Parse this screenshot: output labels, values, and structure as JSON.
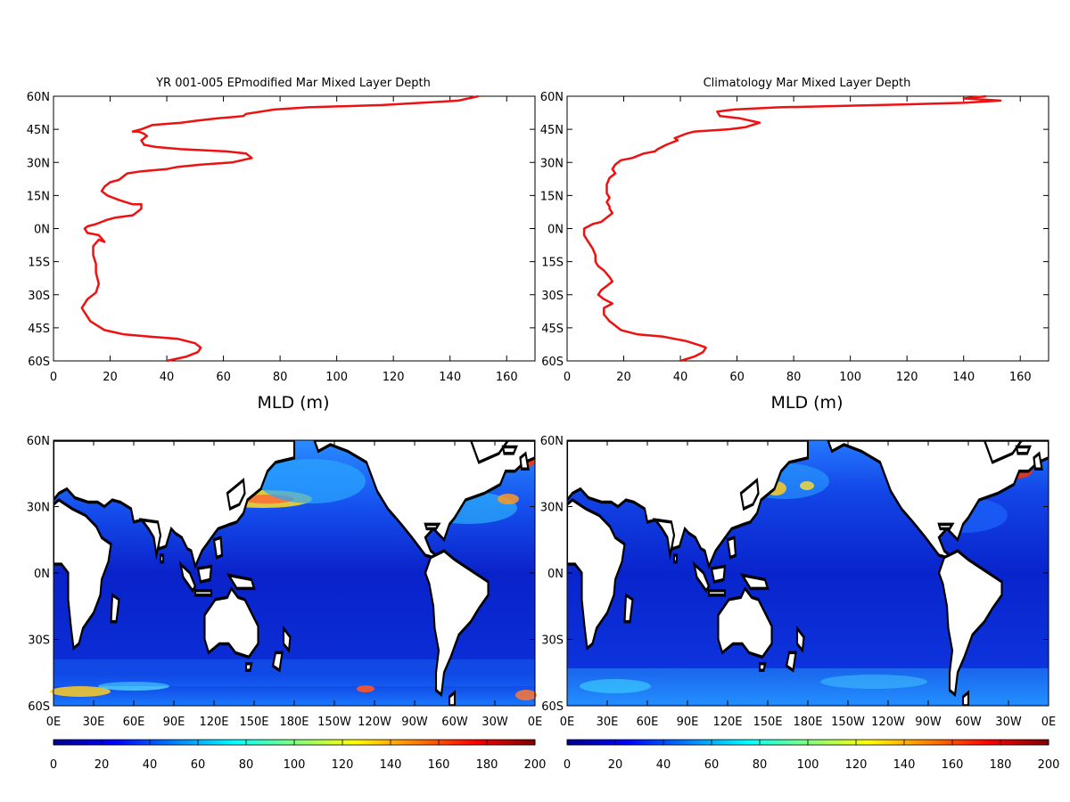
{
  "colors": {
    "profile_line": "#ee1111",
    "frame": "#000000"
  },
  "chart_data": [
    {
      "type": "line",
      "title": "YR 001-005 EPmodified Mar Mixed Layer Depth",
      "xlabel": "MLD (m)",
      "ylabel": "",
      "xlim": [
        0,
        170
      ],
      "ylim": [
        -60,
        60
      ],
      "x_ticks": [
        "0",
        "20",
        "40",
        "60",
        "80",
        "100",
        "120",
        "140",
        "160"
      ],
      "y_ticks": [
        "60S",
        "45S",
        "30S",
        "15S",
        "0N",
        "15N",
        "30N",
        "45N",
        "60N"
      ],
      "grid": false,
      "series": [
        {
          "points": [
            [
              40,
              -60
            ],
            [
              47,
              -58
            ],
            [
              51,
              -56
            ],
            [
              52,
              -54
            ],
            [
              50,
              -52
            ],
            [
              44,
              -50
            ],
            [
              34,
              -49
            ],
            [
              25,
              -48
            ],
            [
              18,
              -46
            ],
            [
              13,
              -42
            ],
            [
              11,
              -38
            ],
            [
              10,
              -36
            ],
            [
              12,
              -32
            ],
            [
              15,
              -29
            ],
            [
              16,
              -25
            ],
            [
              15,
              -20
            ],
            [
              15,
              -16
            ],
            [
              14,
              -12
            ],
            [
              14,
              -8
            ],
            [
              16,
              -5
            ],
            [
              18,
              -6
            ],
            [
              16,
              -3
            ],
            [
              12,
              -2
            ],
            [
              11,
              0
            ],
            [
              12,
              1
            ],
            [
              15,
              2
            ],
            [
              19,
              4
            ],
            [
              22,
              5
            ],
            [
              28,
              6
            ],
            [
              29,
              7
            ],
            [
              31,
              9
            ],
            [
              31,
              11
            ],
            [
              28,
              11
            ],
            [
              23,
              13
            ],
            [
              19,
              15
            ],
            [
              17,
              17
            ],
            [
              18,
              19
            ],
            [
              20,
              21
            ],
            [
              23,
              22
            ],
            [
              24,
              23
            ],
            [
              26,
              25
            ],
            [
              31,
              26
            ],
            [
              40,
              27
            ],
            [
              44,
              28
            ],
            [
              52,
              29
            ],
            [
              63,
              30
            ],
            [
              70,
              32
            ],
            [
              68,
              34
            ],
            [
              61,
              35
            ],
            [
              45,
              36
            ],
            [
              36,
              37
            ],
            [
              32,
              38
            ],
            [
              31,
              40
            ],
            [
              33,
              42
            ],
            [
              32,
              43
            ],
            [
              30,
              44
            ],
            [
              28,
              44
            ],
            [
              31,
              45
            ],
            [
              35,
              47
            ],
            [
              45,
              48
            ],
            [
              51,
              49
            ],
            [
              58,
              50
            ],
            [
              67,
              51
            ],
            [
              68,
              52
            ],
            [
              78,
              54
            ],
            [
              90,
              55
            ],
            [
              116,
              56
            ],
            [
              143,
              58
            ],
            [
              150,
              60
            ]
          ]
        }
      ]
    },
    {
      "type": "line",
      "title": "Climatology Mar Mixed Layer Depth",
      "xlabel": "MLD (m)",
      "ylabel": "",
      "xlim": [
        0,
        170
      ],
      "ylim": [
        -60,
        60
      ],
      "x_ticks": [
        "0",
        "20",
        "40",
        "60",
        "80",
        "100",
        "120",
        "140",
        "160"
      ],
      "y_ticks": [
        "60S",
        "45S",
        "30S",
        "15S",
        "0N",
        "15N",
        "30N",
        "45N",
        "60N"
      ],
      "grid": false,
      "series": [
        {
          "points": [
            [
              40,
              -60
            ],
            [
              45,
              -58
            ],
            [
              48,
              -56
            ],
            [
              49,
              -54
            ],
            [
              47,
              -53
            ],
            [
              42,
              -51
            ],
            [
              34,
              -49
            ],
            [
              25,
              -48
            ],
            [
              19,
              -46
            ],
            [
              15,
              -42
            ],
            [
              13,
              -39
            ],
            [
              13,
              -36
            ],
            [
              16,
              -34
            ],
            [
              13,
              -32
            ],
            [
              11,
              -30
            ],
            [
              12,
              -28
            ],
            [
              14,
              -26
            ],
            [
              16,
              -24
            ],
            [
              15,
              -22
            ],
            [
              13,
              -19
            ],
            [
              11,
              -17
            ],
            [
              10,
              -15
            ],
            [
              10,
              -12
            ],
            [
              9,
              -9
            ],
            [
              7,
              -5
            ],
            [
              6,
              -3
            ],
            [
              6,
              0
            ],
            [
              9,
              2
            ],
            [
              12,
              3
            ],
            [
              14,
              5
            ],
            [
              16,
              7
            ],
            [
              15,
              9
            ],
            [
              15,
              10
            ],
            [
              14,
              12
            ],
            [
              15,
              14
            ],
            [
              14,
              16
            ],
            [
              14,
              18
            ],
            [
              14,
              20
            ],
            [
              15,
              23
            ],
            [
              17,
              25
            ],
            [
              16,
              27
            ],
            [
              17,
              29
            ],
            [
              19,
              31
            ],
            [
              23,
              32
            ],
            [
              25,
              33
            ],
            [
              27,
              34
            ],
            [
              31,
              35
            ],
            [
              32,
              36
            ],
            [
              35,
              38
            ],
            [
              37,
              39
            ],
            [
              39,
              40
            ],
            [
              38,
              41
            ],
            [
              40,
              42
            ],
            [
              42,
              43
            ],
            [
              45,
              44
            ],
            [
              57,
              45
            ],
            [
              63,
              46
            ],
            [
              68,
              48
            ],
            [
              61,
              50
            ],
            [
              54,
              51
            ],
            [
              53,
              53
            ],
            [
              59,
              54
            ],
            [
              75,
              55
            ],
            [
              110,
              56
            ],
            [
              140,
              57
            ],
            [
              153,
              58
            ],
            [
              140,
              59
            ],
            [
              148,
              60
            ]
          ]
        }
      ]
    },
    {
      "type": "heatmap",
      "xlim": [
        0,
        360
      ],
      "ylim": [
        -60,
        60
      ],
      "x_ticks": [
        "0E",
        "30E",
        "60E",
        "90E",
        "120E",
        "150E",
        "180E",
        "150W",
        "120W",
        "90W",
        "60W",
        "30W",
        "0E"
      ],
      "y_ticks": [
        "60S",
        "30S",
        "0N",
        "30N",
        "60N"
      ],
      "colorbar": {
        "min": 0,
        "max": 200,
        "ticks": [
          "0",
          "20",
          "40",
          "60",
          "80",
          "100",
          "120",
          "140",
          "160",
          "180",
          "200"
        ]
      }
    },
    {
      "type": "heatmap",
      "xlim": [
        0,
        360
      ],
      "ylim": [
        -60,
        60
      ],
      "x_ticks": [
        "0E",
        "30E",
        "60E",
        "90E",
        "120E",
        "150E",
        "180E",
        "150W",
        "120W",
        "90W",
        "60W",
        "30W",
        "0E"
      ],
      "y_ticks": [
        "60S",
        "30S",
        "0N",
        "30N",
        "60N"
      ],
      "colorbar": {
        "min": 0,
        "max": 200,
        "ticks": [
          "0",
          "20",
          "40",
          "60",
          "80",
          "100",
          "120",
          "140",
          "160",
          "180",
          "200"
        ]
      }
    }
  ]
}
